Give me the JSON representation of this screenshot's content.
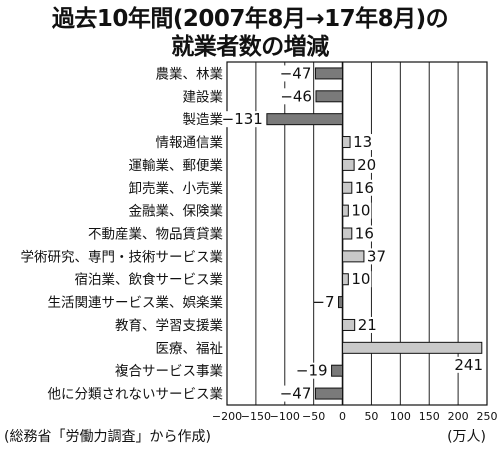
{
  "header": {
    "title_line1": "過去10年間(2007年8月→17年8月)の",
    "title_line2": "就業者数の増減"
  },
  "footer": {
    "source": "(総務省「労働力調査」から作成)",
    "unit": "(万人)"
  },
  "chart_data": {
    "type": "bar",
    "orientation": "horizontal",
    "title": "過去10年間(2007年8月→17年8月)の就業者数の増減",
    "xlim": [
      -200,
      250
    ],
    "xticks": [
      -200,
      -150,
      -100,
      -50,
      0,
      50,
      100,
      150,
      200,
      250
    ],
    "xtick_labels": [
      "−200",
      "−150",
      "−100",
      "−50",
      "0",
      "50",
      "100",
      "150",
      "200",
      "250"
    ],
    "unit": "(万人)",
    "grid": true,
    "colors": {
      "negative": "#7a7a7a",
      "positive": "#c9c9c9"
    },
    "categories": [
      "農業、林業",
      "建設業",
      "製造業",
      "情報通信業",
      "運輸業、郵便業",
      "卸売業、小売業",
      "金融業、保険業",
      "不動産業、物品賃貸業",
      "学術研究、専門・技術サービス業",
      "宿泊業、飲食サービス業",
      "生活関連サービス業、娯楽業",
      "教育、学習支援業",
      "医療、福祉",
      "複合サービス事業",
      "他に分類されないサービス業"
    ],
    "values": [
      -47,
      -46,
      -131,
      13,
      20,
      16,
      10,
      16,
      37,
      10,
      -7,
      21,
      241,
      -19,
      -47
    ],
    "data_labels": [
      "−47",
      "−46",
      "−131",
      "13",
      "20",
      "16",
      "10",
      "16",
      "37",
      "10",
      "−7",
      "21",
      "241",
      "−19",
      "−47"
    ]
  }
}
